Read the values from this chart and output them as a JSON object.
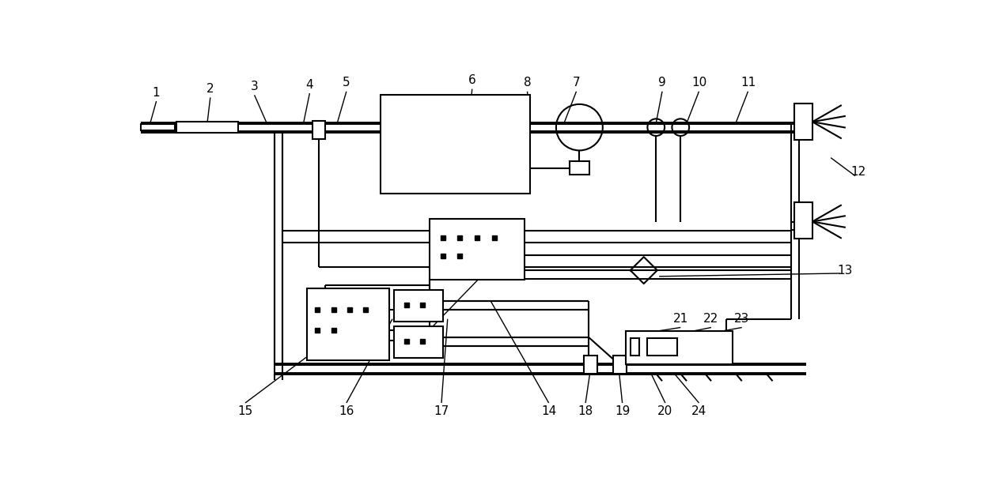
{
  "bg_color": "#ffffff",
  "line_color": "#000000",
  "lw": 1.5,
  "lw_thick": 2.8,
  "lw_thin": 1.0,
  "fig_width": 12.4,
  "fig_height": 6.05
}
